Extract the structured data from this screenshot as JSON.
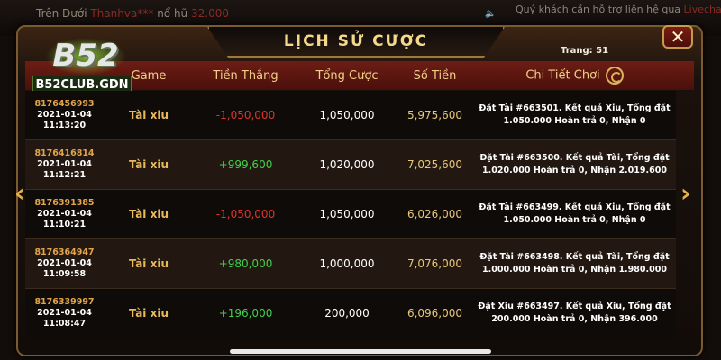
{
  "background": {
    "ticker_prefix": "Trên Dưới",
    "ticker_user": "Thanhva***",
    "ticker_mid": "nổ hũ",
    "ticker_amount": "32.000",
    "notice_text": "Quý khách cần hỗ trợ liên hệ qua",
    "notice_link": "Livechat"
  },
  "logo": {
    "brand": "B52",
    "site": "B52CLUB.GDN"
  },
  "dialog": {
    "title": "LỊCH SỬ CƯỢC",
    "page_label": "Trang: 51",
    "close_label": "✕"
  },
  "columns": [
    "Game",
    "Tiền Thắng",
    "Tổng Cược",
    "Số Tiền",
    "Chi Tiết Chơi"
  ],
  "rows": [
    {
      "id": "8176456993",
      "date": "2021-01-04",
      "time": "11:13:20",
      "game": "Tài xiu",
      "win": "-1,050,000",
      "win_sign": "neg",
      "bet": "1,050,000",
      "balance": "5,975,600",
      "detail": "Đặt Tài #663501. Kết quả Xiu, Tổng đặt 1.050.000 Hoàn trả 0, Nhận 0"
    },
    {
      "id": "8176416814",
      "date": "2021-01-04",
      "time": "11:12:21",
      "game": "Tài xiu",
      "win": "+999,600",
      "win_sign": "pos",
      "bet": "1,020,000",
      "balance": "7,025,600",
      "detail": "Đặt Tài #663500. Kết quả Tài, Tổng đặt 1.020.000 Hoàn trả 0, Nhận 2.019.600"
    },
    {
      "id": "8176391385",
      "date": "2021-01-04",
      "time": "11:10:21",
      "game": "Tài xiu",
      "win": "-1,050,000",
      "win_sign": "neg",
      "bet": "1,050,000",
      "balance": "6,026,000",
      "detail": "Đặt Tài #663499. Kết quả Xiu, Tổng đặt 1.050.000 Hoàn trả 0, Nhận 0"
    },
    {
      "id": "8176364947",
      "date": "2021-01-04",
      "time": "11:09:58",
      "game": "Tài xiu",
      "win": "+980,000",
      "win_sign": "pos",
      "bet": "1,000,000",
      "balance": "7,076,000",
      "detail": "Đặt Tài #663498. Kết quả Tài, Tổng đặt 1.000.000 Hoàn trả 0, Nhận 1.980.000"
    },
    {
      "id": "8176339997",
      "date": "2021-01-04",
      "time": "11:08:47",
      "game": "Tài xiu",
      "win": "+196,000",
      "win_sign": "pos",
      "bet": "200,000",
      "balance": "6,096,000",
      "detail": "Đặt Xiu #663497. Kết quả Xiu, Tổng đặt 200.000 Hoàn trả 0, Nhận 396.000"
    }
  ],
  "colors": {
    "loss": "#e0342c",
    "win": "#3fd24a",
    "accent": "#f0d08a"
  }
}
